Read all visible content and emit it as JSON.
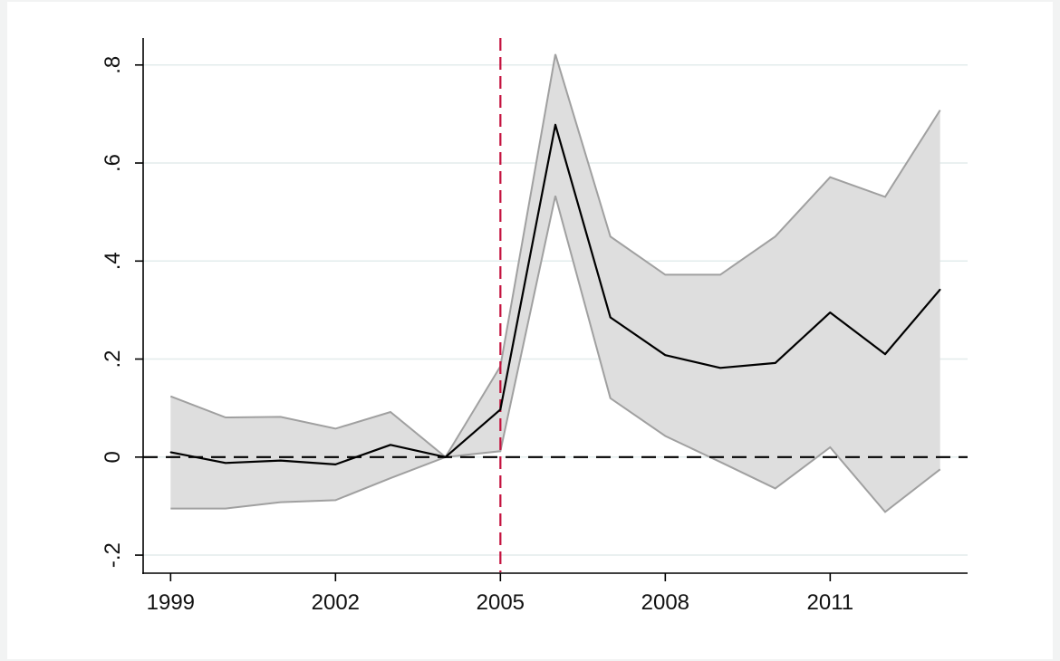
{
  "chart_data": {
    "type": "line",
    "title": "",
    "xlabel": "",
    "ylabel": "",
    "x": [
      1999,
      2000,
      2001,
      2002,
      2003,
      2004,
      2005,
      2006,
      2007,
      2008,
      2009,
      2010,
      2011,
      2012,
      2013
    ],
    "series": [
      {
        "kind": "point_estimate",
        "color": "#000000",
        "values": [
          0.01,
          -0.012,
          -0.007,
          -0.015,
          0.025,
          0.0,
          0.097,
          0.678,
          0.285,
          0.208,
          0.182,
          0.192,
          0.295,
          0.21,
          0.342
        ]
      },
      {
        "kind": "confidence_band",
        "fill": "#dedede",
        "edge": "#a0a0a0",
        "upper": [
          0.124,
          0.081,
          0.082,
          0.058,
          0.092,
          0.0,
          0.185,
          0.822,
          0.45,
          0.372,
          0.372,
          0.45,
          0.571,
          0.531,
          0.708
        ],
        "lower": [
          -0.105,
          -0.105,
          -0.092,
          -0.088,
          -0.043,
          0.0,
          0.012,
          0.533,
          0.12,
          0.043,
          -0.01,
          -0.064,
          0.02,
          -0.112,
          -0.025
        ]
      }
    ],
    "xlim": [
      1998.5,
      2013.5
    ],
    "ylim": [
      -0.235,
      0.855
    ],
    "xticks": [
      1999,
      2002,
      2005,
      2008,
      2011
    ],
    "xtick_labels": [
      "1999",
      "2002",
      "2005",
      "2008",
      "2011"
    ],
    "yticks": [
      -0.2,
      0,
      0.2,
      0.4,
      0.6,
      0.8
    ],
    "ytick_labels": [
      "-.2",
      "0",
      ".2",
      ".4",
      ".6",
      ".8"
    ],
    "grid": true,
    "grid_color": "#e3ecec",
    "reference_lines": [
      {
        "orientation": "horizontal",
        "value": 0,
        "style": "dashed",
        "color": "#000000"
      },
      {
        "orientation": "vertical",
        "value": 2005,
        "style": "dashed",
        "color": "#c4123e"
      }
    ],
    "legend": "none"
  }
}
